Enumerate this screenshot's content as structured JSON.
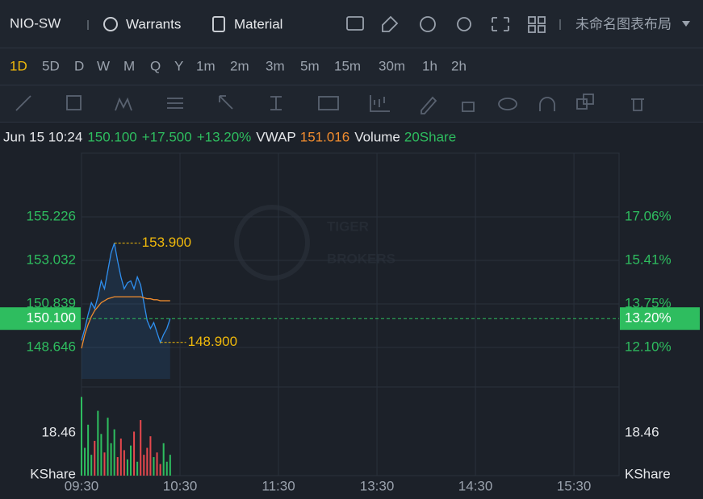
{
  "header": {
    "symbol": "NIO-SW",
    "tabs": [
      "Warrants",
      "Material"
    ],
    "layout_name": "未命名图表布局"
  },
  "timeframes": {
    "items": [
      "1D",
      "5D",
      "D",
      "W",
      "M",
      "Q",
      "Y",
      "1m",
      "2m",
      "3m",
      "5m",
      "15m",
      "30m",
      "1h",
      "2h"
    ],
    "active": 0
  },
  "info": {
    "time": "Jun 15 10:24",
    "price": "150.100",
    "change": "+17.500",
    "change_pct": "+13.20%",
    "vwap_label": "VWAP",
    "vwap": "151.016",
    "volume_label": "Volume",
    "volume": "20Share"
  },
  "watermark": [
    "TIGER",
    "BROKERS"
  ],
  "chart": {
    "minutes": [
      0,
      2,
      4,
      6,
      8,
      10,
      12,
      14,
      16,
      18,
      20,
      22,
      24,
      26,
      28,
      30,
      32,
      34,
      36,
      38,
      40,
      42,
      44,
      46,
      48,
      50,
      52,
      54
    ],
    "price": [
      149.0,
      149.6,
      150.3,
      150.9,
      150.6,
      151.2,
      152.0,
      151.6,
      152.5,
      153.4,
      153.9,
      153.0,
      152.2,
      151.6,
      151.9,
      152.0,
      151.6,
      152.2,
      151.8,
      150.9,
      150.0,
      149.6,
      149.9,
      149.4,
      148.9,
      149.3,
      149.6,
      150.1
    ],
    "vwap": [
      148.6,
      149.3,
      149.8,
      150.2,
      150.5,
      150.7,
      150.9,
      151.0,
      151.1,
      151.15,
      151.2,
      151.2,
      151.2,
      151.2,
      151.2,
      151.2,
      151.2,
      151.2,
      151.2,
      151.15,
      151.1,
      151.1,
      151.05,
      151.05,
      151.0,
      151.0,
      151.0,
      151.0
    ],
    "volume": [
      34,
      12,
      22,
      9,
      15,
      28,
      18,
      10,
      25,
      14,
      20,
      8,
      16,
      11,
      7,
      13,
      19,
      6,
      24,
      9,
      12,
      17,
      8,
      10,
      5,
      14,
      6,
      9
    ],
    "price_color": "#2f8fef",
    "vwap_color": "#f08c2e",
    "up_color": "#2ebd5f",
    "down_color": "#e5484d",
    "xlim": [
      0,
      327.5
    ],
    "xticks": [
      {
        "value": 0,
        "label": "09:30"
      },
      {
        "value": 60,
        "label": "10:30"
      },
      {
        "value": 120,
        "label": "11:30"
      },
      {
        "value": 180,
        "label": "13:30"
      },
      {
        "value": 240,
        "label": "14:30"
      },
      {
        "value": 300,
        "label": "15:30"
      }
    ],
    "ylim": [
      147.062,
      158.434
    ],
    "yticks": [
      155.226,
      153.032,
      150.839,
      148.646
    ],
    "y2ticks": [
      {
        "value": 155.226,
        "label": "17.06%"
      },
      {
        "value": 153.032,
        "label": "15.41%"
      },
      {
        "value": 150.839,
        "label": "13.75%"
      },
      {
        "value": 148.646,
        "label": "12.10%"
      }
    ],
    "current": {
      "value": 150.1,
      "label": "150.100",
      "pct": "13.20%"
    },
    "high": {
      "value": 153.9,
      "label": "153.900"
    },
    "low": {
      "value": 148.9,
      "label": "148.900"
    },
    "volume_ylim": [
      0,
      38.3
    ],
    "volume_ticks": [
      18.46
    ],
    "volume_unit": "KShare"
  }
}
